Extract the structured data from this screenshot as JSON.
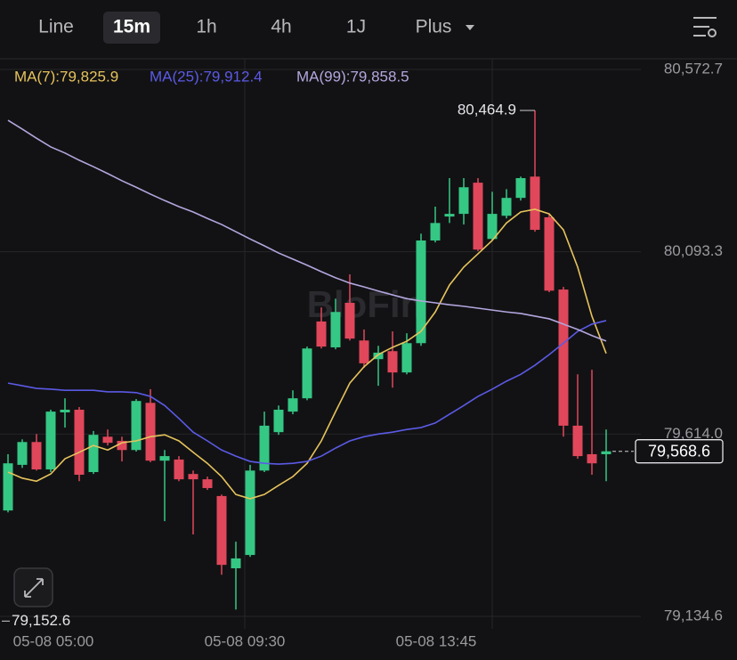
{
  "tabs": [
    "Line",
    "15m",
    "1h",
    "4h",
    "1J",
    "Plus"
  ],
  "active_tab": 1,
  "chart_data": {
    "type": "candlestick",
    "watermark": "BloFin",
    "up_color": "#35c784",
    "down_color": "#e0475b",
    "open": [
      79413,
      79533,
      79593,
      79521,
      79671,
      79678,
      79514,
      79607,
      79596,
      79572,
      79696,
      79544,
      79547,
      79509,
      79495,
      79451,
      79261,
      79296,
      79518,
      79619,
      79673,
      79708,
      79910,
      79842,
      79959,
      79860,
      79811,
      79832,
      79776,
      79853,
      80123,
      80186,
      80193,
      80275,
      80127,
      80188,
      80235,
      80291,
      80184,
      79994,
      79636,
      79561,
      79561
    ],
    "high": [
      79561,
      79600,
      79614,
      79678,
      79708,
      79685,
      79622,
      79626,
      79607,
      79706,
      79732,
      79572,
      79556,
      79518,
      79502,
      79455,
      79331,
      79533,
      79673,
      79689,
      79729,
      79844,
      79947,
      79970,
      80034,
      79889,
      79846,
      79884,
      79879,
      80141,
      80212,
      80287,
      80287,
      80287,
      80251,
      80258,
      80291,
      80464.9,
      80193,
      80001,
      79771,
      79783,
      79626
    ],
    "low": [
      79408,
      79525,
      79518,
      79514,
      79631,
      79490,
      79509,
      79584,
      79542,
      79568,
      79540,
      79385,
      79490,
      79350,
      79467,
      79244,
      79152.6,
      79291,
      79514,
      79612,
      79666,
      79703,
      79839,
      79837,
      79860,
      79788,
      79741,
      79736,
      79771,
      79846,
      80118,
      80169,
      80165,
      80095,
      80123,
      80181,
      80228,
      80146,
      79987,
      79607,
      79549,
      79507,
      79490
    ],
    "close": [
      79537,
      79593,
      79521,
      79673,
      79678,
      79507,
      79612,
      79591,
      79572,
      79701,
      79544,
      79556,
      79495,
      79495,
      79472,
      79270,
      79287,
      79518,
      79636,
      79678,
      79708,
      79839,
      79844,
      79935,
      79865,
      79800,
      79828,
      79776,
      79853,
      80123,
      80169,
      80193,
      80263,
      80099,
      80193,
      80235,
      80287,
      80151,
      79991,
      79636,
      79556,
      79537,
      79568.6
    ],
    "series": [
      {
        "name": "MA(7):79,825.9",
        "color": "#e6c35c",
        "values": [
          79514,
          79498,
          79490,
          79509,
          79549,
          79566,
          79584,
          79572,
          79591,
          79596,
          79607,
          79612,
          79596,
          79566,
          79537,
          79502,
          79455,
          79444,
          79455,
          79479,
          79502,
          79537,
          79596,
          79673,
          79748,
          79791,
          79823,
          79842,
          79858,
          79884,
          79935,
          80006,
          80053,
          80088,
          80123,
          80169,
          80198,
          80205,
          80193,
          80151,
          80053,
          79924,
          79825.9
        ]
      },
      {
        "name": "MA(25):79,912.4",
        "color": "#5b5ae6",
        "values": [
          79748,
          79741,
          79734,
          79732,
          79729,
          79729,
          79729,
          79725,
          79725,
          79723,
          79713,
          79689,
          79655,
          79619,
          79596,
          79572,
          79556,
          79542,
          79537,
          79535,
          79537,
          79542,
          79556,
          79577,
          79596,
          79607,
          79614,
          79619,
          79626,
          79631,
          79643,
          79666,
          79689,
          79713,
          79732,
          79753,
          79771,
          79795,
          79823,
          79853,
          79884,
          79903,
          79912.4
        ]
      },
      {
        "name": "MA(99):79,858.5",
        "color": "#b4a6de",
        "values": [
          80439,
          80416,
          80392,
          80369,
          80353,
          80334,
          80317,
          80299,
          80280,
          80263,
          80245,
          80228,
          80212,
          80198,
          80181,
          80165,
          80146,
          80127,
          80109,
          80090,
          80074,
          80058,
          80041,
          80025,
          80011,
          80001,
          79990,
          79980,
          79970,
          79964,
          79959,
          79954,
          79950,
          79945,
          79940,
          79935,
          79931,
          79924,
          79917,
          79903,
          79889,
          79873,
          79858.5
        ]
      }
    ],
    "ylim": [
      79101.8,
      80600.8
    ],
    "yticks": [
      {
        "value": 80572.7,
        "label": "80,572.7"
      },
      {
        "value": 80093.3,
        "label": "80,093.3"
      },
      {
        "value": 79614.0,
        "label": "79,614.0"
      },
      {
        "value": 79134.6,
        "label": "79,134.6"
      }
    ],
    "xtick_labels": [
      "05-08 05:00",
      "05-08 09:30",
      "05-08 13:45"
    ],
    "annotations": [
      {
        "label": "80,464.9",
        "value": 80464.9
      },
      {
        "label": "79,152.6",
        "value": 79152.6
      },
      {
        "label": "79,568.6",
        "value": 79568.6
      }
    ]
  }
}
